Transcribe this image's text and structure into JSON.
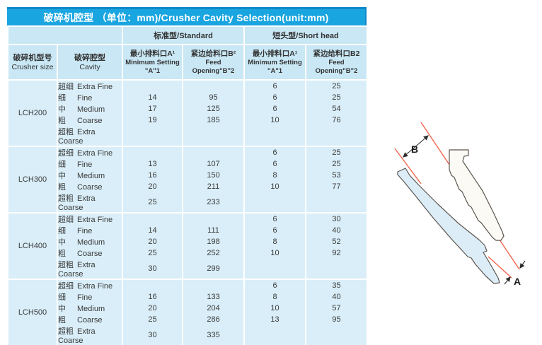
{
  "title": "破碎机腔型 （单位：mm)/Crusher Cavity Selection(unit:mm)",
  "table": {
    "group_headers": {
      "standard": "标准型/Standard",
      "short_head": "短头型/Short head"
    },
    "columns": {
      "crusher_size": {
        "zh": "破碎机型号",
        "en": "Crusher size"
      },
      "cavity": {
        "zh": "破碎腔型",
        "en": "Cavity"
      },
      "std_min_setting": {
        "zh": "最小排料口A¹",
        "en": "Minimum Setting",
        "en2": "\"A\"1"
      },
      "std_feed_opening": {
        "zh": "紧边给料口B²",
        "en": "Feed",
        "en2": "Opening\"B\"2"
      },
      "sh_min_setting": {
        "zh": "最小排料口A¹",
        "en": "Minimum Setting",
        "en2": "\"A\"1"
      },
      "sh_feed_opening": {
        "zh": "紧边给料口B2",
        "en": "Feed",
        "en2": "Opening\"B\"2"
      }
    },
    "cavity_types": [
      {
        "zh": "超细",
        "en": "Extra Fine"
      },
      {
        "zh": "细",
        "en": "Fine"
      },
      {
        "zh": "中",
        "en": "Medium"
      },
      {
        "zh": "粗",
        "en": "Coarse"
      },
      {
        "zh": "超粗",
        "en": "Extra Coarse"
      }
    ],
    "groups": [
      {
        "model": "LCH200",
        "rows": [
          [
            "",
            "",
            "6",
            "25"
          ],
          [
            "14",
            "95",
            "6",
            "25"
          ],
          [
            "17",
            "125",
            "6",
            "54"
          ],
          [
            "19",
            "185",
            "10",
            "76"
          ],
          [
            "",
            "",
            "",
            ""
          ]
        ]
      },
      {
        "model": "LCH300",
        "rows": [
          [
            "",
            "",
            "6",
            "25"
          ],
          [
            "13",
            "107",
            "6",
            "25"
          ],
          [
            "16",
            "150",
            "8",
            "53"
          ],
          [
            "20",
            "211",
            "10",
            "77"
          ],
          [
            "25",
            "233",
            "",
            ""
          ]
        ]
      },
      {
        "model": "LCH400",
        "rows": [
          [
            "",
            "",
            "6",
            "30"
          ],
          [
            "14",
            "111",
            "6",
            "40"
          ],
          [
            "20",
            "198",
            "8",
            "52"
          ],
          [
            "25",
            "252",
            "10",
            "92"
          ],
          [
            "30",
            "299",
            "",
            ""
          ]
        ]
      },
      {
        "model": "LCH500",
        "rows": [
          [
            "",
            "",
            "6",
            "35"
          ],
          [
            "16",
            "133",
            "8",
            "40"
          ],
          [
            "20",
            "204",
            "10",
            "57"
          ],
          [
            "25",
            "286",
            "13",
            "95"
          ],
          [
            "30",
            "335",
            "",
            ""
          ]
        ]
      }
    ]
  },
  "diagram": {
    "label_a": "A",
    "label_b": "B",
    "line_color": "#f2664d",
    "outline_color": "#5c554e",
    "liner_fill": "#fbfaf5",
    "blade_fill": "#dcedf8"
  },
  "colors": {
    "title_bar": "#19a5e0",
    "title_bar_edge": "#0d89c8",
    "header_bg": "#c9e7f4",
    "body_bg": "#d9eef8",
    "text": "#3b3b3b"
  }
}
